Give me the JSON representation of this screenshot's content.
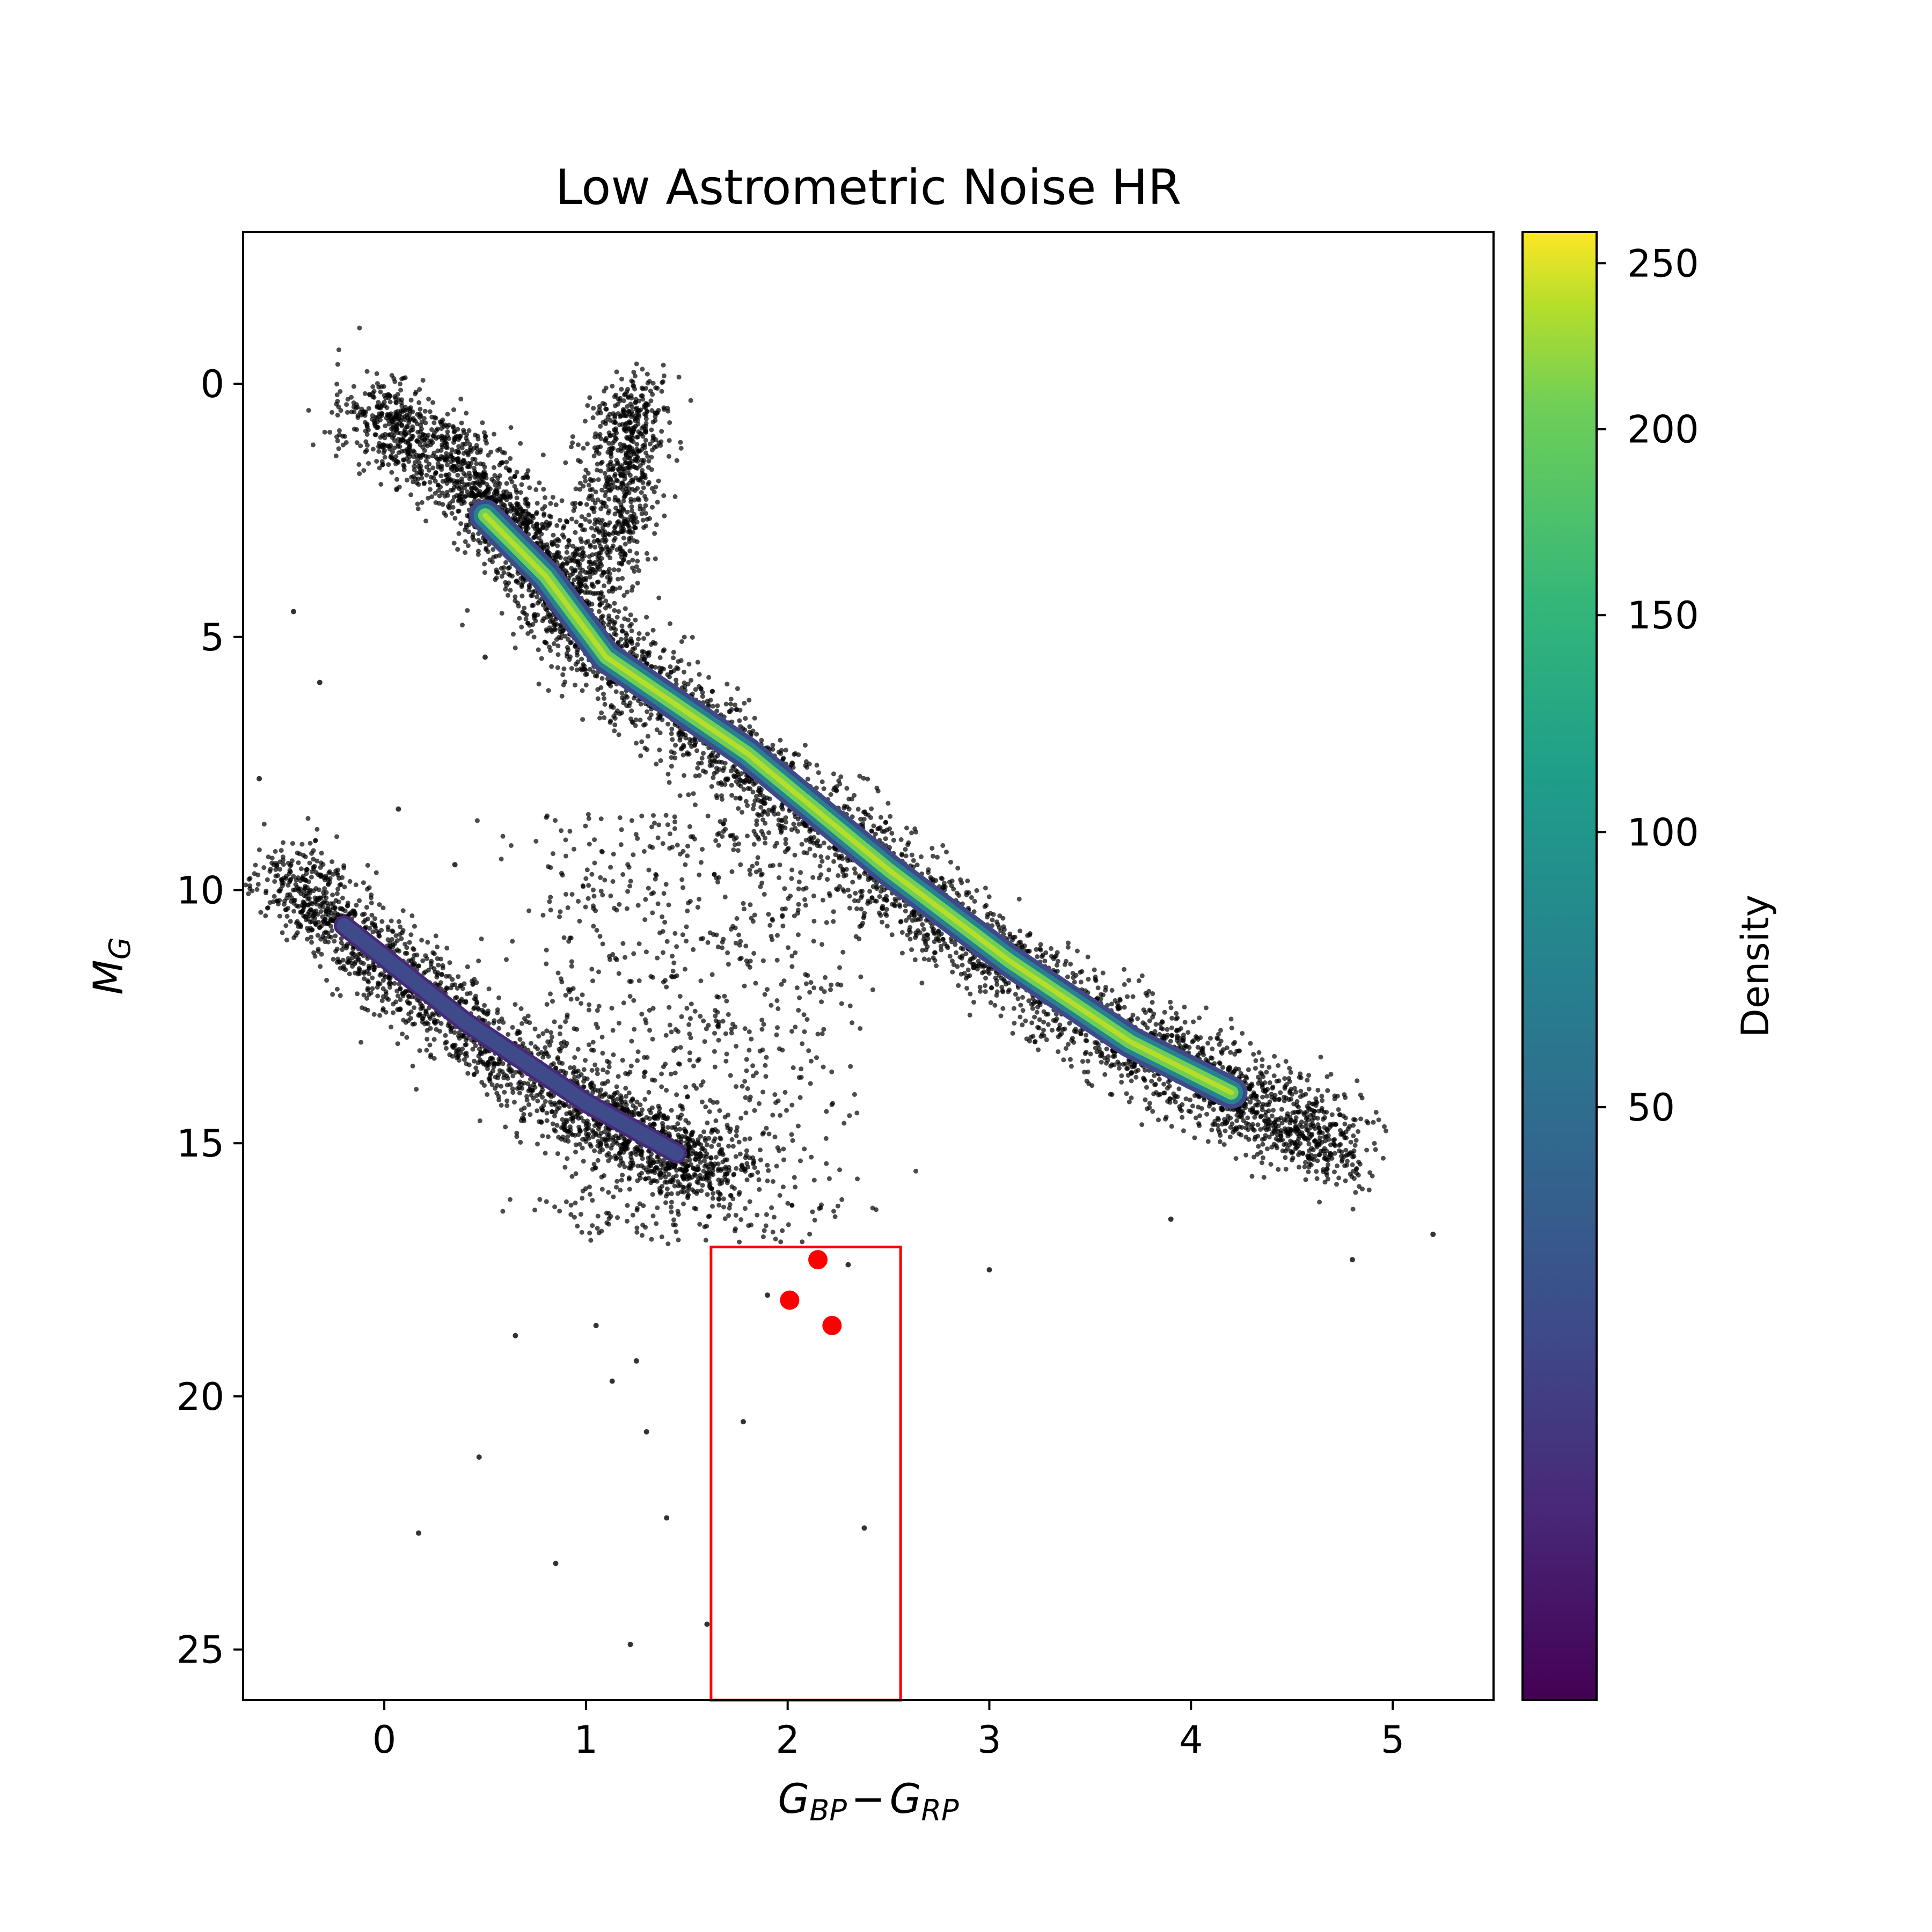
{
  "chart_data": {
    "type": "scatter",
    "title": "Low Astrometric Noise HR",
    "xlabel": "G_BP - G_RP",
    "xlabel_parts": {
      "g1": "G",
      "sub1": "BP",
      "minus": "−",
      "g2": "G",
      "sub2": "RP"
    },
    "ylabel": "M_G",
    "ylabel_parts": {
      "m": "M",
      "sub": "G"
    },
    "xlim": [
      -0.7,
      5.5
    ],
    "ylim": [
      26.0,
      -3.0
    ],
    "y_inverted": true,
    "xticks": [
      0,
      1,
      2,
      3,
      4,
      5
    ],
    "yticks": [
      0,
      5,
      10,
      15,
      20,
      25
    ],
    "colorbar": {
      "label": "Density",
      "colormap": "viridis",
      "ticks": [
        50,
        100,
        150,
        200,
        250
      ],
      "range": [
        1,
        260
      ],
      "scale": "nonlinear"
    },
    "regions": [
      {
        "name": "main sequence",
        "x": [
          -0.1,
          4.9
        ],
        "y": [
          0.3,
          15.5
        ]
      },
      {
        "name": "white dwarf sequence",
        "x": [
          -0.5,
          1.7
        ],
        "y": [
          9.5,
          15.8
        ]
      },
      {
        "name": "giant branch",
        "x": [
          1.0,
          1.5
        ],
        "y": [
          0.0,
          4.0
        ]
      }
    ],
    "selection_box": {
      "x": [
        1.62,
        2.56
      ],
      "y": [
        17.05,
        26.0
      ],
      "color": "#ff0000"
    },
    "highlighted_points": [
      {
        "x": 2.15,
        "y": 17.3
      },
      {
        "x": 2.01,
        "y": 18.1
      },
      {
        "x": 2.22,
        "y": 18.6
      }
    ],
    "sparse_points": [
      {
        "x": 0.47,
        "y": 21.2
      },
      {
        "x": 0.17,
        "y": 22.7
      },
      {
        "x": 0.85,
        "y": 23.3
      },
      {
        "x": 1.22,
        "y": 24.9
      },
      {
        "x": 1.4,
        "y": 22.4
      },
      {
        "x": 1.3,
        "y": 20.7
      },
      {
        "x": 1.13,
        "y": 19.7
      },
      {
        "x": 1.25,
        "y": 19.3
      },
      {
        "x": 0.65,
        "y": 18.8
      },
      {
        "x": 1.05,
        "y": 18.6
      },
      {
        "x": 1.78,
        "y": 20.5
      },
      {
        "x": 2.38,
        "y": 22.6
      },
      {
        "x": 1.6,
        "y": 24.5
      },
      {
        "x": 3.0,
        "y": 17.5
      },
      {
        "x": 4.8,
        "y": 17.3
      },
      {
        "x": 5.2,
        "y": 16.8
      },
      {
        "x": -0.45,
        "y": 4.5
      },
      {
        "x": -0.32,
        "y": 5.9
      },
      {
        "x": 0.35,
        "y": 9.5
      },
      {
        "x": 0.07,
        "y": 8.4
      },
      {
        "x": -0.62,
        "y": 7.8
      },
      {
        "x": 1.9,
        "y": 18.0
      },
      {
        "x": 2.3,
        "y": 17.4
      },
      {
        "x": 0.5,
        "y": 5.4
      },
      {
        "x": 3.9,
        "y": 16.5
      }
    ],
    "colors": {
      "scatter_points": "#000000",
      "selection": "#ff0000",
      "axes": "#000000"
    }
  }
}
